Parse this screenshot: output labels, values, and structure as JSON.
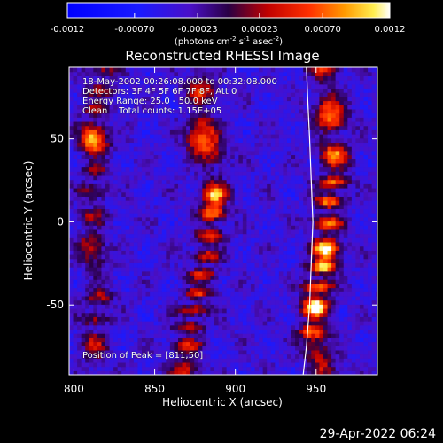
{
  "chart_data": {
    "type": "heatmap",
    "title": "Reconstructed RHESSI Image",
    "xlabel": "Heliocentric X (arcsec)",
    "ylabel": "Heliocentric Y (arcsec)",
    "xlim": [
      797,
      988
    ],
    "ylim": [
      -92,
      93
    ],
    "x_ticks": [
      800,
      850,
      900,
      950
    ],
    "y_ticks": [
      -50,
      0,
      50
    ],
    "colorbar": {
      "label_main": "(photons cm",
      "label_exp1": "-2",
      "label_mid": " s",
      "label_exp2": "-1",
      "label_end": " asec",
      "label_exp3": "-2",
      "label_close": ")",
      "range": [
        -0.0012,
        0.0012
      ],
      "tick_values": [
        -0.0012,
        -0.0007,
        -0.00023,
        0.00023,
        0.0007,
        0.0012
      ],
      "tick_labels": [
        "-0.0012",
        "-0.00070",
        "-0.00023",
        "0.00023",
        "0.00070",
        "0.0012"
      ]
    },
    "limb_x": [
      944,
      945,
      946,
      947,
      948,
      947,
      946,
      944,
      942
    ],
    "limb_y": [
      93,
      70,
      50,
      25,
      0,
      -25,
      -50,
      -75,
      -92
    ],
    "emission_ridges": [
      {
        "x": [
          818,
          812,
          815,
          812,
          810,
          816,
          812,
          815
        ],
        "y": [
          90,
          60,
          40,
          20,
          -10,
          -40,
          -70,
          -90
        ],
        "strength": 0.55
      },
      {
        "x": [
          878,
          880,
          885,
          888,
          884,
          878,
          870,
          868
        ],
        "y": [
          90,
          60,
          40,
          20,
          -10,
          -40,
          -70,
          -90
        ],
        "strength": 0.75
      },
      {
        "x": [
          955,
          960,
          962,
          958,
          955,
          950,
          948,
          955
        ],
        "y": [
          90,
          60,
          30,
          10,
          -20,
          -45,
          -70,
          -90
        ],
        "strength": 1.0
      }
    ],
    "hotspots": [
      {
        "x": 811,
        "y": 50,
        "value": 1.0
      },
      {
        "x": 887,
        "y": 12,
        "value": 0.9
      },
      {
        "x": 957,
        "y": -20,
        "value": 0.95
      },
      {
        "x": 950,
        "y": -50,
        "value": 0.8
      },
      {
        "x": 875,
        "y": 48,
        "value": 0.6
      }
    ]
  },
  "annotations": {
    "time": "18-May-2002 00:26:08.000 to 00:32:08.000",
    "detectors": "Detectors: 3F 4F 5F 6F 7F 8F, Att 0",
    "energy": "Energy Range: 25.0 - 50.0 keV",
    "clean": "Clean    Total counts: 1.15E+05",
    "peak": "Position of Peak = [811,50]"
  },
  "footer": "29-Apr-2022 06:24"
}
